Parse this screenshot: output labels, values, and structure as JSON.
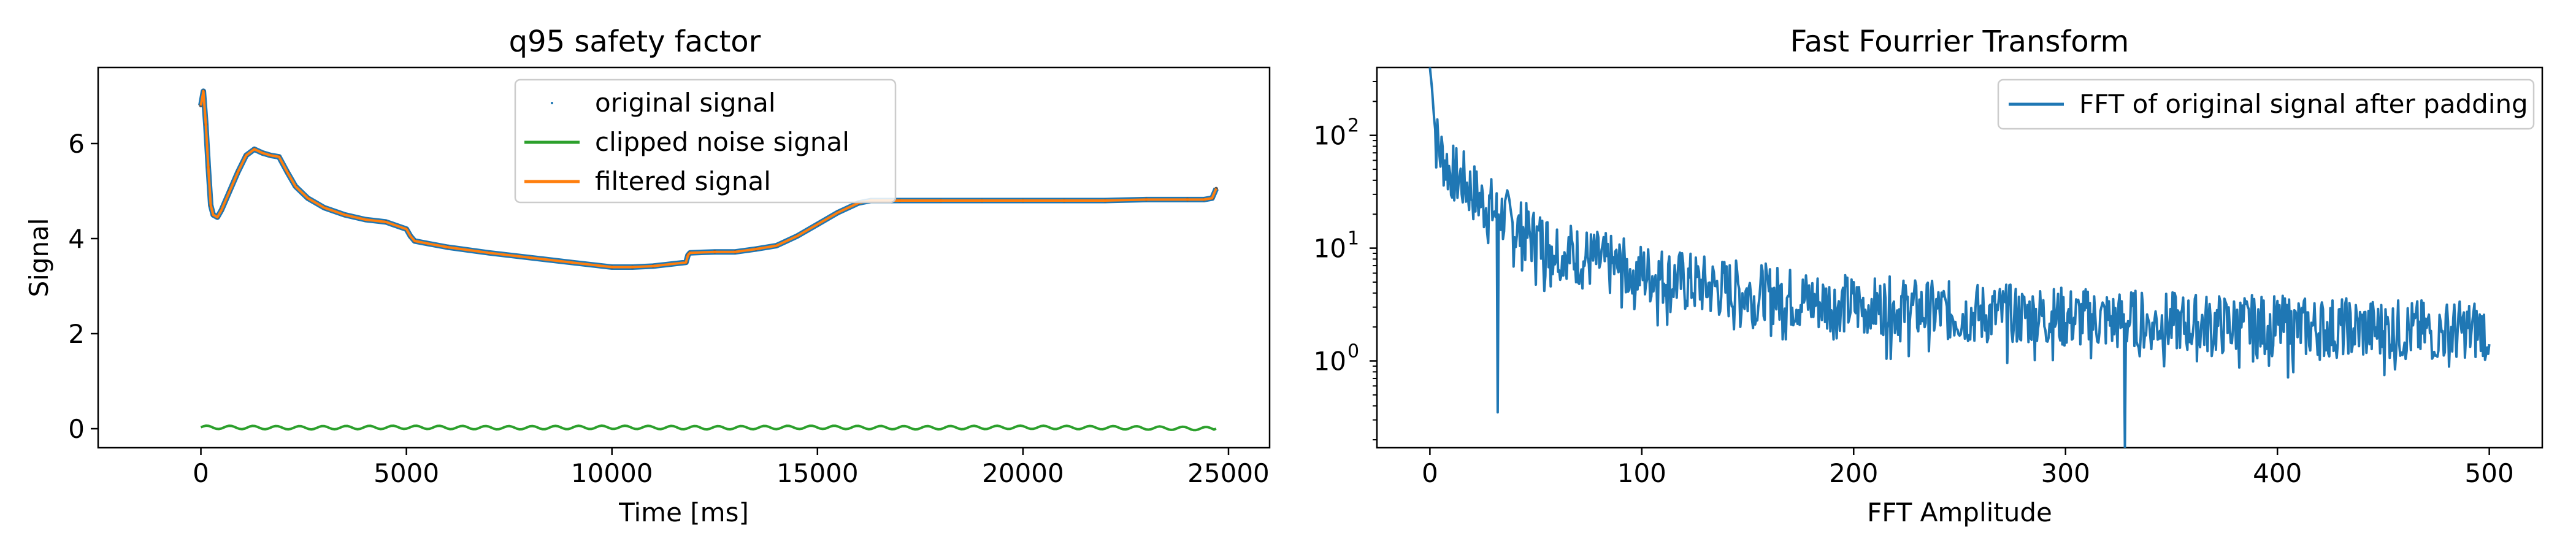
{
  "chart_data": [
    {
      "type": "line",
      "title": "q95 safety factor",
      "xlabel": "Time [ms]",
      "ylabel": "Signal",
      "xlim": [
        -2500,
        26000
      ],
      "ylim": [
        -0.4,
        7.6
      ],
      "xticks": [
        0,
        5000,
        10000,
        15000,
        20000,
        25000
      ],
      "xtick_labels": [
        "0",
        "5000",
        "10000",
        "15000",
        "20000",
        "25000"
      ],
      "yticks": [
        0,
        2,
        4,
        6
      ],
      "ytick_labels": [
        "0",
        "2",
        "4",
        "6"
      ],
      "legend_position": "top-center",
      "grid": false,
      "series": [
        {
          "name": "original signal",
          "style": "points",
          "color": "#1f77b4",
          "x": [
            0,
            60,
            120,
            180,
            240,
            300,
            400,
            500,
            700,
            900,
            1100,
            1300,
            1500,
            1700,
            1900,
            2100,
            2300,
            2600,
            3000,
            3500,
            4000,
            4500,
            5000,
            5100,
            5200,
            5500,
            6000,
            7000,
            8000,
            9000,
            10000,
            10500,
            11000,
            11800,
            11850,
            11900,
            12500,
            13000,
            13500,
            14000,
            14500,
            15000,
            15500,
            16000,
            16300,
            17000,
            18000,
            19000,
            20000,
            21000,
            22000,
            23000,
            24000,
            24400,
            24600,
            24700
          ],
          "y": [
            6.8,
            7.1,
            6.4,
            5.5,
            4.7,
            4.5,
            4.45,
            4.6,
            5.0,
            5.4,
            5.75,
            5.88,
            5.8,
            5.75,
            5.72,
            5.4,
            5.1,
            4.85,
            4.65,
            4.5,
            4.4,
            4.35,
            4.2,
            4.05,
            3.95,
            3.9,
            3.82,
            3.7,
            3.6,
            3.5,
            3.4,
            3.4,
            3.42,
            3.5,
            3.65,
            3.7,
            3.72,
            3.72,
            3.78,
            3.85,
            4.05,
            4.3,
            4.55,
            4.75,
            4.8,
            4.8,
            4.8,
            4.8,
            4.8,
            4.8,
            4.8,
            4.82,
            4.82,
            4.82,
            4.85,
            5.05
          ]
        },
        {
          "name": "clipped noise signal",
          "style": "line",
          "color": "#2ca02c",
          "x": [
            0,
            2500,
            5000,
            7500,
            10000,
            12500,
            15000,
            17500,
            20000,
            22500,
            24700
          ],
          "y": [
            0.03,
            0.02,
            0.03,
            0.02,
            0.03,
            0.02,
            0.03,
            0.02,
            0.03,
            0.02,
            0.0
          ]
        },
        {
          "name": "filtered signal",
          "style": "line",
          "color": "#ff7f0e",
          "x": [
            0,
            60,
            120,
            180,
            240,
            300,
            400,
            500,
            700,
            900,
            1100,
            1300,
            1500,
            1700,
            1900,
            2100,
            2300,
            2600,
            3000,
            3500,
            4000,
            4500,
            5000,
            5100,
            5200,
            5500,
            6000,
            7000,
            8000,
            9000,
            10000,
            10500,
            11000,
            11800,
            11850,
            11900,
            12500,
            13000,
            13500,
            14000,
            14500,
            15000,
            15500,
            16000,
            16300,
            17000,
            18000,
            19000,
            20000,
            21000,
            22000,
            23000,
            24000,
            24400,
            24600,
            24700
          ],
          "y": [
            6.8,
            7.1,
            6.4,
            5.5,
            4.7,
            4.5,
            4.45,
            4.6,
            5.0,
            5.4,
            5.75,
            5.88,
            5.8,
            5.75,
            5.72,
            5.4,
            5.1,
            4.85,
            4.65,
            4.5,
            4.4,
            4.35,
            4.2,
            4.05,
            3.95,
            3.9,
            3.82,
            3.7,
            3.6,
            3.5,
            3.4,
            3.4,
            3.42,
            3.5,
            3.65,
            3.7,
            3.72,
            3.72,
            3.78,
            3.85,
            4.05,
            4.3,
            4.55,
            4.75,
            4.8,
            4.8,
            4.8,
            4.8,
            4.8,
            4.8,
            4.8,
            4.82,
            4.82,
            4.82,
            4.85,
            5.05
          ]
        }
      ]
    },
    {
      "type": "line",
      "title": "Fast Fourrier Transform",
      "xlabel": "FFT Amplitude",
      "ylabel": "",
      "yscale": "log",
      "xlim": [
        -25,
        525
      ],
      "ylim": [
        0.17,
        400
      ],
      "xticks": [
        0,
        100,
        200,
        300,
        400,
        500
      ],
      "xtick_labels": [
        "0",
        "100",
        "200",
        "300",
        "400",
        "500"
      ],
      "yticks": [
        1,
        10,
        100
      ],
      "ytick_labels_base": [
        "10",
        "10",
        "10"
      ],
      "ytick_labels_exp": [
        "0",
        "1",
        "2"
      ],
      "legend_position": "top-right",
      "grid": false,
      "series": [
        {
          "name": "FFT of original signal after padding",
          "style": "line",
          "color": "#1f77b4",
          "x": [
            0,
            1,
            2,
            3,
            5,
            7,
            10,
            15,
            20,
            25,
            30,
            32,
            35,
            40,
            50,
            60,
            70,
            80,
            90,
            100,
            110,
            120,
            130,
            140,
            150,
            160,
            170,
            180,
            190,
            200,
            220,
            240,
            260,
            280,
            300,
            320,
            328,
            340,
            360,
            380,
            400,
            420,
            440,
            460,
            480,
            500
          ],
          "y": [
            400,
            260,
            140,
            90,
            70,
            60,
            45,
            40,
            32,
            25,
            22,
            0.35,
            19,
            15,
            12,
            10,
            8.5,
            7.5,
            6.5,
            6.0,
            5.5,
            5.0,
            4.6,
            4.3,
            4.0,
            3.8,
            3.6,
            3.4,
            3.2,
            3.1,
            2.9,
            2.7,
            2.6,
            2.5,
            2.4,
            2.3,
            0.17,
            2.2,
            2.1,
            2.05,
            2.0,
            1.95,
            1.9,
            1.85,
            1.8,
            1.9
          ]
        }
      ]
    }
  ]
}
